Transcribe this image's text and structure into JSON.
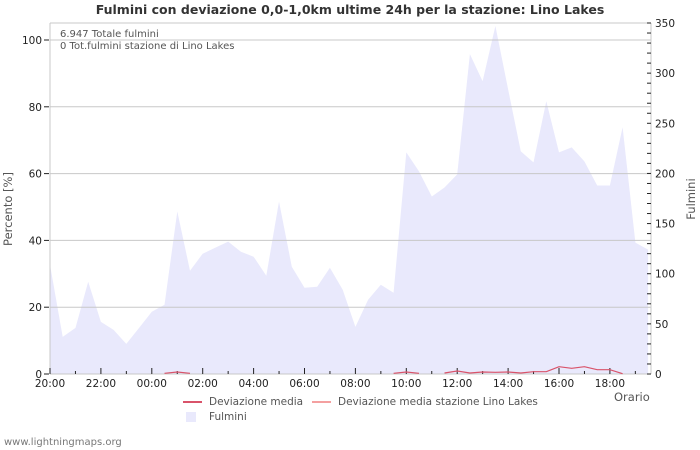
{
  "title": "Fulmini con deviazione 0,0-1,0km ultime 24h per la stazione: Lino Lakes",
  "info": {
    "total": "6.947 Totale fulmini",
    "station_total": "0 Tot.fulmini stazione di Lino Lakes"
  },
  "axes": {
    "left_label": "Percento   [%]",
    "right_label": "Fulmini",
    "x_label": "Orario",
    "left_ticks": [
      "0",
      "20",
      "40",
      "60",
      "80",
      "100"
    ],
    "right_ticks": [
      "0",
      "50",
      "100",
      "150",
      "200",
      "250",
      "300",
      "350"
    ],
    "x_ticks": [
      "20:00",
      "22:00",
      "00:00",
      "02:00",
      "04:00",
      "06:00",
      "08:00",
      "10:00",
      "12:00",
      "14:00",
      "16:00",
      "18:00"
    ]
  },
  "legend": {
    "dev_media": "Deviazione media",
    "dev_station": "Deviazione media stazione Lino Lakes",
    "fulmini": "Fulmini"
  },
  "footer": "www.lightningmaps.org",
  "colors": {
    "area": "#e9e9fc",
    "dev_media": "#d9536a",
    "dev_station": "#f4a0a0",
    "grid": "#c8c8c8"
  },
  "chart_data": {
    "type": "area",
    "title": "Fulmini con deviazione 0,0-1,0km ultime 24h per la stazione: Lino Lakes",
    "xlabel": "Orario",
    "ylabel": "Percento [%]",
    "y2label": "Fulmini",
    "ylim": [
      0,
      105
    ],
    "y2lim": [
      0,
      350
    ],
    "grid": true,
    "legend_position": "bottom",
    "x": [
      "20:00",
      "20:30",
      "21:00",
      "21:30",
      "22:00",
      "22:30",
      "23:00",
      "23:30",
      "00:00",
      "00:30",
      "01:00",
      "01:30",
      "02:00",
      "02:30",
      "03:00",
      "03:30",
      "04:00",
      "04:30",
      "05:00",
      "05:30",
      "06:00",
      "06:30",
      "07:00",
      "07:30",
      "08:00",
      "08:30",
      "09:00",
      "09:30",
      "10:00",
      "10:30",
      "11:00",
      "11:30",
      "12:00",
      "12:30",
      "13:00",
      "13:30",
      "14:00",
      "14:30",
      "15:00",
      "15:30",
      "16:00",
      "16:30",
      "17:00",
      "17:30",
      "18:00",
      "18:30",
      "19:00",
      "19:30"
    ],
    "series": [
      {
        "name": "Fulmini",
        "axis": "right",
        "type": "area",
        "values": [
          109,
          37,
          46,
          92,
          52,
          44,
          30,
          46,
          62,
          69,
          162,
          103,
          120,
          126,
          132,
          122,
          117,
          98,
          172,
          107,
          86,
          87,
          106,
          84,
          47,
          74,
          89,
          81,
          221,
          202,
          177,
          186,
          199,
          319,
          292,
          347,
          284,
          222,
          211,
          272,
          221,
          226,
          212,
          188,
          188,
          246,
          131,
          124
        ]
      },
      {
        "name": "Deviazione media",
        "axis": "left",
        "type": "line",
        "values": [
          null,
          null,
          null,
          null,
          null,
          null,
          null,
          null,
          null,
          0.2,
          0.6,
          0.2,
          null,
          null,
          null,
          null,
          null,
          null,
          null,
          null,
          null,
          null,
          null,
          null,
          null,
          null,
          null,
          0.2,
          0.6,
          0.2,
          null,
          0.3,
          0.9,
          0.3,
          0.6,
          0.5,
          0.6,
          0.3,
          0.7,
          0.7,
          2.2,
          1.7,
          2.2,
          1.3,
          1.3,
          0.1,
          null,
          0.7
        ]
      },
      {
        "name": "Deviazione media stazione Lino Lakes",
        "axis": "left",
        "type": "line",
        "values": []
      }
    ]
  }
}
